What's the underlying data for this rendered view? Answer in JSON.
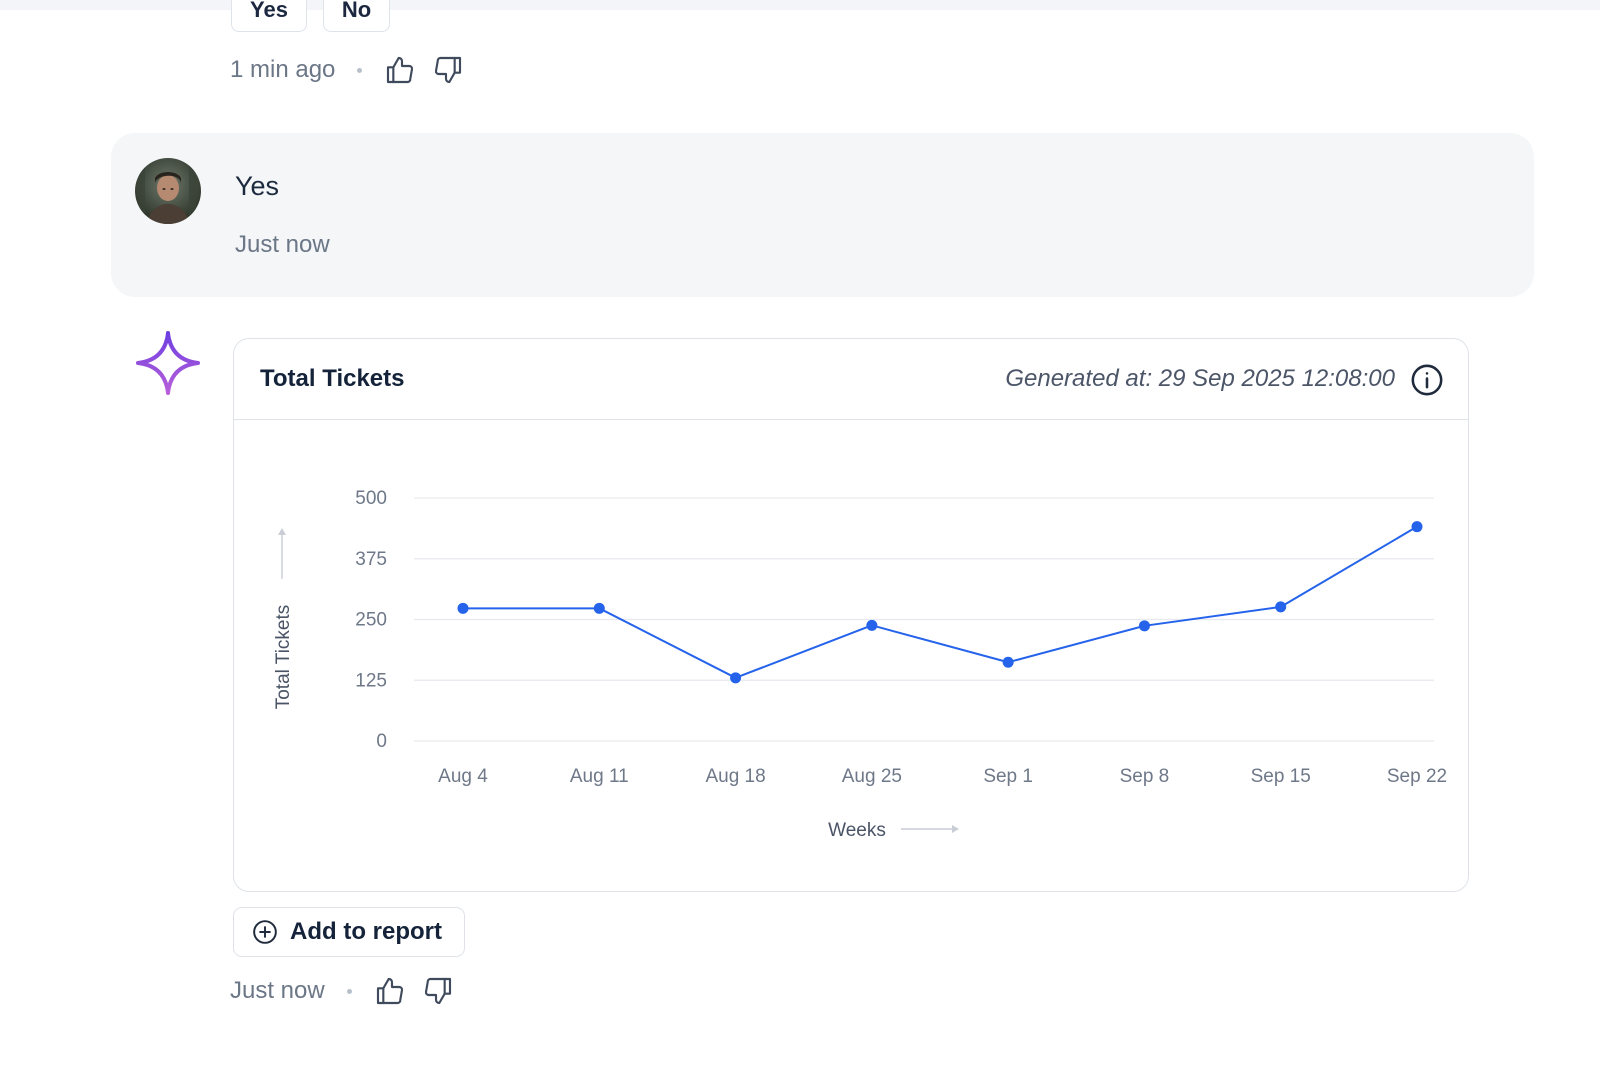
{
  "previous_message": {
    "choices": [
      "Yes",
      "No"
    ],
    "time": "1 min ago"
  },
  "user_message": {
    "text": "Yes",
    "time": "Just now"
  },
  "assistant_message": {
    "card": {
      "title": "Total Tickets",
      "generated_at": "Generated at: 29 Sep 2025 12:08:00"
    },
    "add_to_report_label": "Add to report",
    "time": "Just now"
  },
  "icons": {
    "like": "thumbs-up-icon",
    "dislike": "thumbs-down-icon",
    "info": "info-icon",
    "add": "plus-circle-icon",
    "assistant": "sparkle-icon"
  },
  "colors": {
    "line": "#2563eb",
    "sparkle_top": "#6d3fe0",
    "sparkle_bottom": "#b85fd9",
    "card_border": "#dfe3e8",
    "bubble_bg": "#f4f6f8"
  },
  "chart_data": {
    "type": "line",
    "title": "Total Tickets",
    "xlabel": "Weeks",
    "ylabel": "Total Tickets",
    "categories": [
      "Aug 4",
      "Aug 11",
      "Aug 18",
      "Aug 25",
      "Sep 1",
      "Sep 8",
      "Sep 15",
      "Sep 22"
    ],
    "yticks": [
      0,
      125,
      250,
      375,
      500
    ],
    "ylim": [
      0,
      500
    ],
    "grid": true,
    "series": [
      {
        "values": [
          273,
          273,
          130,
          238,
          162,
          237,
          276,
          441
        ]
      }
    ]
  }
}
